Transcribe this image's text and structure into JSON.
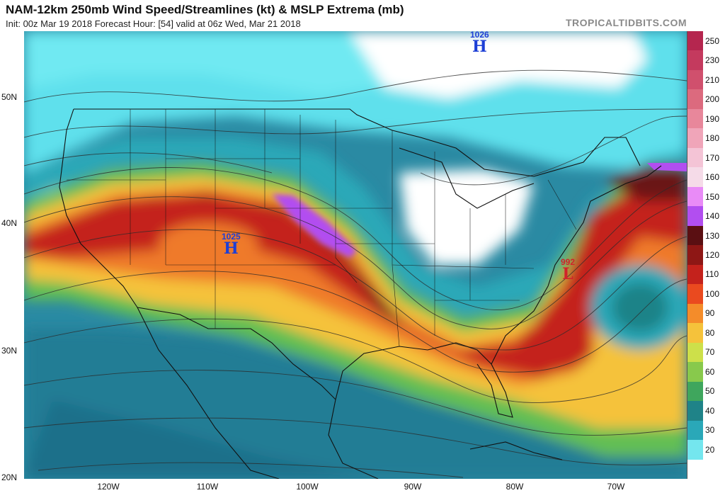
{
  "header": {
    "title": "NAM-12km 250mb Wind Speed/Streamlines (kt) & MSLP Extrema (mb)",
    "subtitle": "Init: 00z Mar 19 2018   Forecast Hour: [54]   valid at 06z Wed, Mar 21 2018",
    "brand": "TROPICALTIDBITS.COM"
  },
  "axes": {
    "lat_labels": [
      "50N",
      "40N",
      "30N",
      "20N"
    ],
    "lon_labels": [
      "120W",
      "110W",
      "100W",
      "90W",
      "80W",
      "70W"
    ]
  },
  "colorbar": {
    "labels": [
      "250",
      "230",
      "210",
      "200",
      "190",
      "180",
      "170",
      "160",
      "150",
      "140",
      "130",
      "120",
      "110",
      "100",
      "90",
      "80",
      "70",
      "60",
      "50",
      "40",
      "30",
      "20"
    ],
    "colors": [
      "#b5264f",
      "#c43a5e",
      "#d0506d",
      "#dc6a7e",
      "#e8879b",
      "#f0a5b9",
      "#f4c4d6",
      "#f5dbe8",
      "#e98bf7",
      "#b24ef0",
      "#5a0f12",
      "#8e1715",
      "#c4221c",
      "#ea4a1f",
      "#f48c2a",
      "#f5c23b",
      "#cde04a",
      "#88c94c",
      "#3fa65d",
      "#1f8388",
      "#2aa8b8",
      "#74e6ee"
    ],
    "low_color": "#ffffff"
  },
  "pressure_centers": [
    {
      "type": "H",
      "value": "1026"
    },
    {
      "type": "H",
      "value": "1025"
    },
    {
      "type": "L",
      "value": "992"
    }
  ],
  "colors": {
    "high": "#1d3fd6",
    "low": "#d1222a",
    "border": "#111111"
  }
}
